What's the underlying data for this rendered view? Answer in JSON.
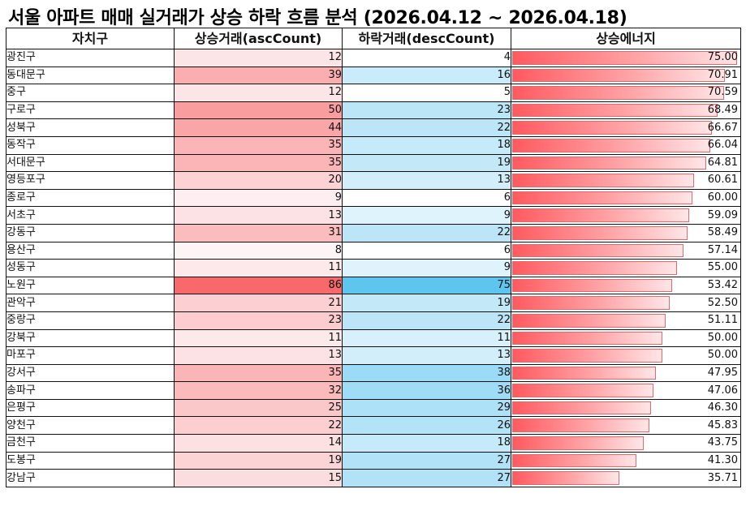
{
  "title": "서울 아파트 매매 실거래가 상승 하락 흐름 분석 (2026.04.12 ~ 2026.04.18)",
  "table": {
    "headers": [
      "자치구",
      "상승거래(ascCount)",
      "하락거래(descCount)",
      "상승에너지"
    ],
    "energy_max": 75.0,
    "asc_max": 86,
    "desc_max": 75,
    "colors": {
      "asc_high": "#f8696b",
      "asc_low": "#fdf4f6",
      "desc_high": "#5ec5ef",
      "desc_low": "#f6fbfe",
      "bar_start": "#ff5a5f",
      "bar_end": "#ffe6e7",
      "bar_border": "#e06a70"
    },
    "rows": [
      {
        "district": "광진구",
        "asc": "12",
        "desc": "4",
        "energy": "75.00"
      },
      {
        "district": "동대문구",
        "asc": "39",
        "desc": "16",
        "energy": "70.91"
      },
      {
        "district": "중구",
        "asc": "12",
        "desc": "5",
        "energy": "70.59"
      },
      {
        "district": "구로구",
        "asc": "50",
        "desc": "23",
        "energy": "68.49"
      },
      {
        "district": "성북구",
        "asc": "44",
        "desc": "22",
        "energy": "66.67"
      },
      {
        "district": "동작구",
        "asc": "35",
        "desc": "18",
        "energy": "66.04"
      },
      {
        "district": "서대문구",
        "asc": "35",
        "desc": "19",
        "energy": "64.81"
      },
      {
        "district": "영등포구",
        "asc": "20",
        "desc": "13",
        "energy": "60.61"
      },
      {
        "district": "종로구",
        "asc": "9",
        "desc": "6",
        "energy": "60.00"
      },
      {
        "district": "서초구",
        "asc": "13",
        "desc": "9",
        "energy": "59.09"
      },
      {
        "district": "강동구",
        "asc": "31",
        "desc": "22",
        "energy": "58.49"
      },
      {
        "district": "용산구",
        "asc": "8",
        "desc": "6",
        "energy": "57.14"
      },
      {
        "district": "성동구",
        "asc": "11",
        "desc": "9",
        "energy": "55.00"
      },
      {
        "district": "노원구",
        "asc": "86",
        "desc": "75",
        "energy": "53.42"
      },
      {
        "district": "관악구",
        "asc": "21",
        "desc": "19",
        "energy": "52.50"
      },
      {
        "district": "중랑구",
        "asc": "23",
        "desc": "22",
        "energy": "51.11"
      },
      {
        "district": "강북구",
        "asc": "11",
        "desc": "11",
        "energy": "50.00"
      },
      {
        "district": "마포구",
        "asc": "13",
        "desc": "13",
        "energy": "50.00"
      },
      {
        "district": "강서구",
        "asc": "35",
        "desc": "38",
        "energy": "47.95"
      },
      {
        "district": "송파구",
        "asc": "32",
        "desc": "36",
        "energy": "47.06"
      },
      {
        "district": "은평구",
        "asc": "25",
        "desc": "29",
        "energy": "46.30"
      },
      {
        "district": "양천구",
        "asc": "22",
        "desc": "26",
        "energy": "45.83"
      },
      {
        "district": "금천구",
        "asc": "14",
        "desc": "18",
        "energy": "43.75"
      },
      {
        "district": "도봉구",
        "asc": "19",
        "desc": "27",
        "energy": "41.30"
      },
      {
        "district": "강남구",
        "asc": "15",
        "desc": "27",
        "energy": "35.71"
      }
    ]
  }
}
